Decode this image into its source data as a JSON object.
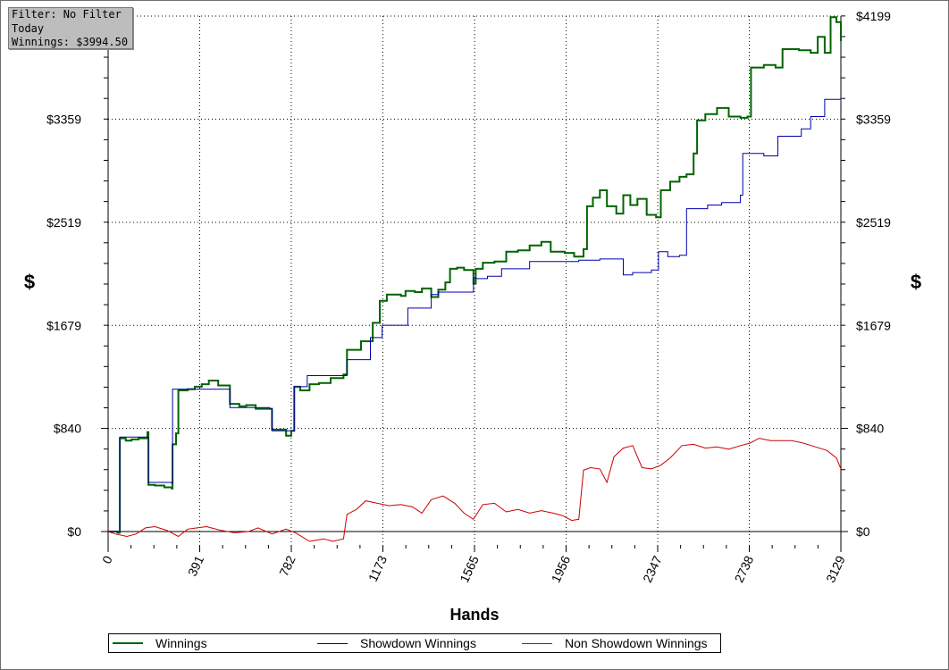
{
  "filter_box": {
    "line1": "Filter: No Filter",
    "line2": "Today",
    "line3": "Winnings: $3994.50"
  },
  "chart_data": {
    "type": "line",
    "xlabel": "Hands",
    "ylabel": "$",
    "x_ticks": [
      0,
      391,
      782,
      1173,
      1565,
      1956,
      2347,
      2738,
      3129
    ],
    "x_tick_labels": [
      "0",
      "391",
      "782",
      "1173",
      "1565",
      "1956",
      "2347",
      "2738",
      "3129"
    ],
    "y_ticks": [
      0,
      840,
      1679,
      2519,
      3359,
      4199
    ],
    "y_tick_labels_left": [
      "$0",
      "$840",
      "$1679",
      "$2519",
      "$3359",
      ""
    ],
    "y_tick_labels_right": [
      "$0",
      "$840",
      "$1679",
      "$2519",
      "$3359",
      "$4199"
    ],
    "xlim": [
      0,
      3129
    ],
    "ylim": [
      -100,
      4199
    ],
    "grid": true,
    "legend_position": "bottom",
    "series": [
      {
        "name": "Winnings",
        "color": "#006400",
        "style": "steps",
        "points": [
          [
            0,
            0
          ],
          [
            40,
            -10
          ],
          [
            50,
            760
          ],
          [
            75,
            740
          ],
          [
            100,
            750
          ],
          [
            130,
            760
          ],
          [
            168,
            810
          ],
          [
            172,
            380
          ],
          [
            200,
            375
          ],
          [
            240,
            360
          ],
          [
            272,
            350
          ],
          [
            275,
            710
          ],
          [
            290,
            800
          ],
          [
            300,
            1150
          ],
          [
            340,
            1160
          ],
          [
            370,
            1180
          ],
          [
            400,
            1200
          ],
          [
            430,
            1230
          ],
          [
            470,
            1190
          ],
          [
            520,
            1040
          ],
          [
            560,
            1020
          ],
          [
            590,
            1030
          ],
          [
            630,
            1000
          ],
          [
            700,
            830
          ],
          [
            760,
            780
          ],
          [
            782,
            820
          ],
          [
            795,
            1180
          ],
          [
            820,
            1150
          ],
          [
            860,
            1200
          ],
          [
            900,
            1210
          ],
          [
            950,
            1250
          ],
          [
            1005,
            1280
          ],
          [
            1020,
            1480
          ],
          [
            1080,
            1550
          ],
          [
            1130,
            1700
          ],
          [
            1160,
            1880
          ],
          [
            1190,
            1930
          ],
          [
            1250,
            1920
          ],
          [
            1270,
            1960
          ],
          [
            1310,
            1950
          ],
          [
            1340,
            1980
          ],
          [
            1380,
            1910
          ],
          [
            1410,
            1970
          ],
          [
            1440,
            2030
          ],
          [
            1460,
            2140
          ],
          [
            1490,
            2150
          ],
          [
            1520,
            2130
          ],
          [
            1560,
            2020
          ],
          [
            1570,
            2140
          ],
          [
            1600,
            2190
          ],
          [
            1650,
            2200
          ],
          [
            1700,
            2280
          ],
          [
            1750,
            2290
          ],
          [
            1800,
            2330
          ],
          [
            1850,
            2360
          ],
          [
            1890,
            2280
          ],
          [
            1950,
            2270
          ],
          [
            1990,
            2240
          ],
          [
            2030,
            2300
          ],
          [
            2045,
            2650
          ],
          [
            2070,
            2720
          ],
          [
            2100,
            2780
          ],
          [
            2130,
            2650
          ],
          [
            2170,
            2590
          ],
          [
            2200,
            2740
          ],
          [
            2230,
            2660
          ],
          [
            2260,
            2710
          ],
          [
            2300,
            2580
          ],
          [
            2340,
            2560
          ],
          [
            2360,
            2780
          ],
          [
            2400,
            2850
          ],
          [
            2440,
            2890
          ],
          [
            2470,
            2910
          ],
          [
            2500,
            3080
          ],
          [
            2515,
            3350
          ],
          [
            2550,
            3400
          ],
          [
            2600,
            3450
          ],
          [
            2650,
            3380
          ],
          [
            2700,
            3370
          ],
          [
            2730,
            3380
          ],
          [
            2745,
            3780
          ],
          [
            2800,
            3800
          ],
          [
            2850,
            3780
          ],
          [
            2880,
            3930
          ],
          [
            2950,
            3920
          ],
          [
            3000,
            3900
          ],
          [
            3030,
            4030
          ],
          [
            3060,
            3900
          ],
          [
            3085,
            4190
          ],
          [
            3110,
            4150
          ],
          [
            3129,
            3995
          ]
        ]
      },
      {
        "name": "Showdown Winnings",
        "color": "#0000aa",
        "style": "steps",
        "points": [
          [
            0,
            0
          ],
          [
            50,
            770
          ],
          [
            168,
            770
          ],
          [
            172,
            400
          ],
          [
            272,
            390
          ],
          [
            275,
            1160
          ],
          [
            470,
            1160
          ],
          [
            520,
            1010
          ],
          [
            690,
            1000
          ],
          [
            700,
            820
          ],
          [
            782,
            820
          ],
          [
            795,
            1180
          ],
          [
            850,
            1270
          ],
          [
            1005,
            1270
          ],
          [
            1020,
            1400
          ],
          [
            1120,
            1580
          ],
          [
            1170,
            1680
          ],
          [
            1280,
            1820
          ],
          [
            1380,
            1930
          ],
          [
            1410,
            1950
          ],
          [
            1560,
            2060
          ],
          [
            1620,
            2080
          ],
          [
            1680,
            2140
          ],
          [
            1800,
            2200
          ],
          [
            2010,
            2210
          ],
          [
            2100,
            2220
          ],
          [
            2200,
            2090
          ],
          [
            2240,
            2110
          ],
          [
            2320,
            2130
          ],
          [
            2350,
            2280
          ],
          [
            2390,
            2240
          ],
          [
            2440,
            2250
          ],
          [
            2470,
            2630
          ],
          [
            2560,
            2660
          ],
          [
            2620,
            2680
          ],
          [
            2700,
            2740
          ],
          [
            2710,
            3080
          ],
          [
            2800,
            3060
          ],
          [
            2860,
            3220
          ],
          [
            2960,
            3280
          ],
          [
            3000,
            3380
          ],
          [
            3060,
            3520
          ],
          [
            3129,
            3500
          ]
        ]
      },
      {
        "name": "Non Showdown Winnings",
        "color": "#cc0000",
        "style": "line",
        "points": [
          [
            0,
            0
          ],
          [
            30,
            -20
          ],
          [
            80,
            -40
          ],
          [
            120,
            -20
          ],
          [
            160,
            30
          ],
          [
            200,
            40
          ],
          [
            250,
            10
          ],
          [
            300,
            -40
          ],
          [
            340,
            20
          ],
          [
            380,
            30
          ],
          [
            420,
            40
          ],
          [
            480,
            10
          ],
          [
            540,
            -10
          ],
          [
            600,
            0
          ],
          [
            640,
            30
          ],
          [
            700,
            -20
          ],
          [
            760,
            20
          ],
          [
            800,
            -10
          ],
          [
            860,
            -80
          ],
          [
            920,
            -60
          ],
          [
            960,
            -80
          ],
          [
            1005,
            -60
          ],
          [
            1020,
            140
          ],
          [
            1060,
            180
          ],
          [
            1100,
            250
          ],
          [
            1150,
            230
          ],
          [
            1200,
            210
          ],
          [
            1250,
            220
          ],
          [
            1300,
            200
          ],
          [
            1340,
            150
          ],
          [
            1380,
            260
          ],
          [
            1430,
            290
          ],
          [
            1480,
            230
          ],
          [
            1520,
            150
          ],
          [
            1560,
            100
          ],
          [
            1600,
            220
          ],
          [
            1650,
            230
          ],
          [
            1700,
            160
          ],
          [
            1750,
            180
          ],
          [
            1800,
            150
          ],
          [
            1850,
            170
          ],
          [
            1900,
            150
          ],
          [
            1940,
            130
          ],
          [
            1980,
            90
          ],
          [
            2010,
            100
          ],
          [
            2030,
            500
          ],
          [
            2060,
            520
          ],
          [
            2100,
            510
          ],
          [
            2130,
            400
          ],
          [
            2160,
            610
          ],
          [
            2200,
            680
          ],
          [
            2240,
            700
          ],
          [
            2280,
            520
          ],
          [
            2320,
            510
          ],
          [
            2360,
            540
          ],
          [
            2400,
            600
          ],
          [
            2450,
            700
          ],
          [
            2500,
            710
          ],
          [
            2550,
            680
          ],
          [
            2600,
            690
          ],
          [
            2650,
            670
          ],
          [
            2700,
            700
          ],
          [
            2740,
            720
          ],
          [
            2780,
            760
          ],
          [
            2830,
            740
          ],
          [
            2880,
            740
          ],
          [
            2920,
            740
          ],
          [
            2970,
            720
          ],
          [
            3020,
            690
          ],
          [
            3070,
            660
          ],
          [
            3110,
            600
          ],
          [
            3129,
            510
          ]
        ]
      }
    ]
  }
}
